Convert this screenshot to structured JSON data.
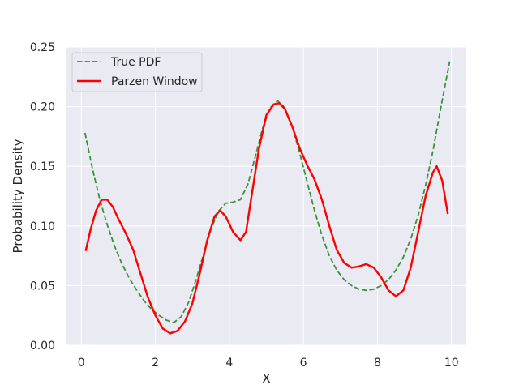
{
  "chart_data": {
    "type": "line",
    "title": "",
    "xlabel": "X",
    "ylabel": "Probability Density",
    "xlim": [
      -0.4,
      10.4
    ],
    "ylim": [
      0.0,
      0.25
    ],
    "xticks": [
      0,
      2,
      4,
      6,
      8,
      10
    ],
    "xtick_labels": [
      "0",
      "2",
      "4",
      "6",
      "8",
      "10"
    ],
    "yticks": [
      0.0,
      0.05,
      0.1,
      0.15,
      0.2,
      0.25
    ],
    "ytick_labels": [
      "0.00",
      "0.05",
      "0.10",
      "0.15",
      "0.20",
      "0.25"
    ],
    "grid": true,
    "legend_position": "top-left",
    "background": "#eaeaf2",
    "series": [
      {
        "name": "True PDF",
        "color": "#3a923a",
        "style": "dashed",
        "points": [
          [
            0.1,
            0.178
          ],
          [
            0.3,
            0.148
          ],
          [
            0.5,
            0.122
          ],
          [
            0.7,
            0.101
          ],
          [
            0.9,
            0.083
          ],
          [
            1.1,
            0.068
          ],
          [
            1.3,
            0.056
          ],
          [
            1.5,
            0.046
          ],
          [
            1.7,
            0.037
          ],
          [
            1.9,
            0.03
          ],
          [
            2.1,
            0.025
          ],
          [
            2.3,
            0.021
          ],
          [
            2.5,
            0.019
          ],
          [
            2.7,
            0.024
          ],
          [
            2.9,
            0.036
          ],
          [
            3.1,
            0.055
          ],
          [
            3.3,
            0.076
          ],
          [
            3.5,
            0.097
          ],
          [
            3.7,
            0.112
          ],
          [
            3.9,
            0.119
          ],
          [
            4.1,
            0.12
          ],
          [
            4.3,
            0.122
          ],
          [
            4.5,
            0.135
          ],
          [
            4.7,
            0.158
          ],
          [
            4.9,
            0.182
          ],
          [
            5.1,
            0.199
          ],
          [
            5.3,
            0.205
          ],
          [
            5.5,
            0.199
          ],
          [
            5.7,
            0.183
          ],
          [
            5.9,
            0.161
          ],
          [
            6.1,
            0.137
          ],
          [
            6.3,
            0.113
          ],
          [
            6.5,
            0.092
          ],
          [
            6.7,
            0.075
          ],
          [
            6.9,
            0.063
          ],
          [
            7.1,
            0.055
          ],
          [
            7.3,
            0.05
          ],
          [
            7.5,
            0.047
          ],
          [
            7.7,
            0.046
          ],
          [
            7.9,
            0.047
          ],
          [
            8.1,
            0.05
          ],
          [
            8.3,
            0.055
          ],
          [
            8.5,
            0.063
          ],
          [
            8.7,
            0.074
          ],
          [
            8.9,
            0.089
          ],
          [
            9.1,
            0.109
          ],
          [
            9.3,
            0.134
          ],
          [
            9.5,
            0.163
          ],
          [
            9.7,
            0.197
          ],
          [
            9.95,
            0.238
          ]
        ]
      },
      {
        "name": "Parzen Window",
        "color": "#ff0000",
        "style": "solid",
        "points": [
          [
            0.12,
            0.079
          ],
          [
            0.25,
            0.097
          ],
          [
            0.4,
            0.113
          ],
          [
            0.55,
            0.122
          ],
          [
            0.7,
            0.122
          ],
          [
            0.85,
            0.116
          ],
          [
            1.0,
            0.106
          ],
          [
            1.2,
            0.094
          ],
          [
            1.4,
            0.08
          ],
          [
            1.6,
            0.06
          ],
          [
            1.8,
            0.04
          ],
          [
            2.0,
            0.025
          ],
          [
            2.2,
            0.014
          ],
          [
            2.4,
            0.01
          ],
          [
            2.6,
            0.012
          ],
          [
            2.8,
            0.02
          ],
          [
            3.0,
            0.035
          ],
          [
            3.2,
            0.06
          ],
          [
            3.4,
            0.088
          ],
          [
            3.6,
            0.108
          ],
          [
            3.75,
            0.113
          ],
          [
            3.9,
            0.108
          ],
          [
            4.1,
            0.095
          ],
          [
            4.3,
            0.088
          ],
          [
            4.45,
            0.095
          ],
          [
            4.6,
            0.125
          ],
          [
            4.8,
            0.165
          ],
          [
            5.0,
            0.193
          ],
          [
            5.2,
            0.202
          ],
          [
            5.35,
            0.203
          ],
          [
            5.5,
            0.198
          ],
          [
            5.7,
            0.183
          ],
          [
            5.9,
            0.165
          ],
          [
            6.1,
            0.151
          ],
          [
            6.3,
            0.139
          ],
          [
            6.5,
            0.122
          ],
          [
            6.7,
            0.1
          ],
          [
            6.9,
            0.08
          ],
          [
            7.1,
            0.069
          ],
          [
            7.3,
            0.065
          ],
          [
            7.5,
            0.066
          ],
          [
            7.7,
            0.068
          ],
          [
            7.9,
            0.065
          ],
          [
            8.1,
            0.057
          ],
          [
            8.3,
            0.046
          ],
          [
            8.5,
            0.041
          ],
          [
            8.7,
            0.046
          ],
          [
            8.9,
            0.065
          ],
          [
            9.1,
            0.095
          ],
          [
            9.3,
            0.125
          ],
          [
            9.5,
            0.145
          ],
          [
            9.6,
            0.15
          ],
          [
            9.75,
            0.138
          ],
          [
            9.9,
            0.11
          ]
        ]
      }
    ]
  }
}
